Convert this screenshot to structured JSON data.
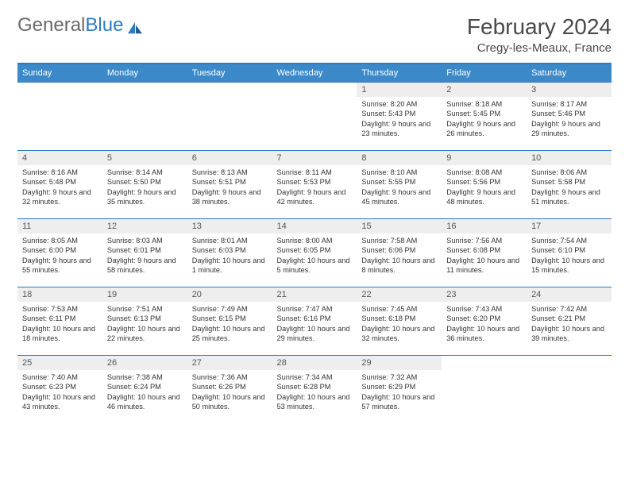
{
  "brand": {
    "text1": "General",
    "text2": "Blue"
  },
  "title": "February 2024",
  "location": "Cregy-les-Meaux, France",
  "colors": {
    "header_bg": "#3b89c9",
    "header_border": "#2f7bbf",
    "daynum_bg": "#eeeeee",
    "text": "#333333",
    "brand_gray": "#6a6a6a",
    "brand_blue": "#2f7bbf"
  },
  "weekdays": [
    "Sunday",
    "Monday",
    "Tuesday",
    "Wednesday",
    "Thursday",
    "Friday",
    "Saturday"
  ],
  "weeks": [
    [
      null,
      null,
      null,
      null,
      {
        "n": "1",
        "sr": "8:20 AM",
        "ss": "5:43 PM",
        "dl": "9 hours and 23 minutes."
      },
      {
        "n": "2",
        "sr": "8:18 AM",
        "ss": "5:45 PM",
        "dl": "9 hours and 26 minutes."
      },
      {
        "n": "3",
        "sr": "8:17 AM",
        "ss": "5:46 PM",
        "dl": "9 hours and 29 minutes."
      }
    ],
    [
      {
        "n": "4",
        "sr": "8:16 AM",
        "ss": "5:48 PM",
        "dl": "9 hours and 32 minutes."
      },
      {
        "n": "5",
        "sr": "8:14 AM",
        "ss": "5:50 PM",
        "dl": "9 hours and 35 minutes."
      },
      {
        "n": "6",
        "sr": "8:13 AM",
        "ss": "5:51 PM",
        "dl": "9 hours and 38 minutes."
      },
      {
        "n": "7",
        "sr": "8:11 AM",
        "ss": "5:53 PM",
        "dl": "9 hours and 42 minutes."
      },
      {
        "n": "8",
        "sr": "8:10 AM",
        "ss": "5:55 PM",
        "dl": "9 hours and 45 minutes."
      },
      {
        "n": "9",
        "sr": "8:08 AM",
        "ss": "5:56 PM",
        "dl": "9 hours and 48 minutes."
      },
      {
        "n": "10",
        "sr": "8:06 AM",
        "ss": "5:58 PM",
        "dl": "9 hours and 51 minutes."
      }
    ],
    [
      {
        "n": "11",
        "sr": "8:05 AM",
        "ss": "6:00 PM",
        "dl": "9 hours and 55 minutes."
      },
      {
        "n": "12",
        "sr": "8:03 AM",
        "ss": "6:01 PM",
        "dl": "9 hours and 58 minutes."
      },
      {
        "n": "13",
        "sr": "8:01 AM",
        "ss": "6:03 PM",
        "dl": "10 hours and 1 minute."
      },
      {
        "n": "14",
        "sr": "8:00 AM",
        "ss": "6:05 PM",
        "dl": "10 hours and 5 minutes."
      },
      {
        "n": "15",
        "sr": "7:58 AM",
        "ss": "6:06 PM",
        "dl": "10 hours and 8 minutes."
      },
      {
        "n": "16",
        "sr": "7:56 AM",
        "ss": "6:08 PM",
        "dl": "10 hours and 11 minutes."
      },
      {
        "n": "17",
        "sr": "7:54 AM",
        "ss": "6:10 PM",
        "dl": "10 hours and 15 minutes."
      }
    ],
    [
      {
        "n": "18",
        "sr": "7:53 AM",
        "ss": "6:11 PM",
        "dl": "10 hours and 18 minutes."
      },
      {
        "n": "19",
        "sr": "7:51 AM",
        "ss": "6:13 PM",
        "dl": "10 hours and 22 minutes."
      },
      {
        "n": "20",
        "sr": "7:49 AM",
        "ss": "6:15 PM",
        "dl": "10 hours and 25 minutes."
      },
      {
        "n": "21",
        "sr": "7:47 AM",
        "ss": "6:16 PM",
        "dl": "10 hours and 29 minutes."
      },
      {
        "n": "22",
        "sr": "7:45 AM",
        "ss": "6:18 PM",
        "dl": "10 hours and 32 minutes."
      },
      {
        "n": "23",
        "sr": "7:43 AM",
        "ss": "6:20 PM",
        "dl": "10 hours and 36 minutes."
      },
      {
        "n": "24",
        "sr": "7:42 AM",
        "ss": "6:21 PM",
        "dl": "10 hours and 39 minutes."
      }
    ],
    [
      {
        "n": "25",
        "sr": "7:40 AM",
        "ss": "6:23 PM",
        "dl": "10 hours and 43 minutes."
      },
      {
        "n": "26",
        "sr": "7:38 AM",
        "ss": "6:24 PM",
        "dl": "10 hours and 46 minutes."
      },
      {
        "n": "27",
        "sr": "7:36 AM",
        "ss": "6:26 PM",
        "dl": "10 hours and 50 minutes."
      },
      {
        "n": "28",
        "sr": "7:34 AM",
        "ss": "6:28 PM",
        "dl": "10 hours and 53 minutes."
      },
      {
        "n": "29",
        "sr": "7:32 AM",
        "ss": "6:29 PM",
        "dl": "10 hours and 57 minutes."
      },
      null,
      null
    ]
  ],
  "labels": {
    "sunrise": "Sunrise:",
    "sunset": "Sunset:",
    "daylight": "Daylight:"
  }
}
